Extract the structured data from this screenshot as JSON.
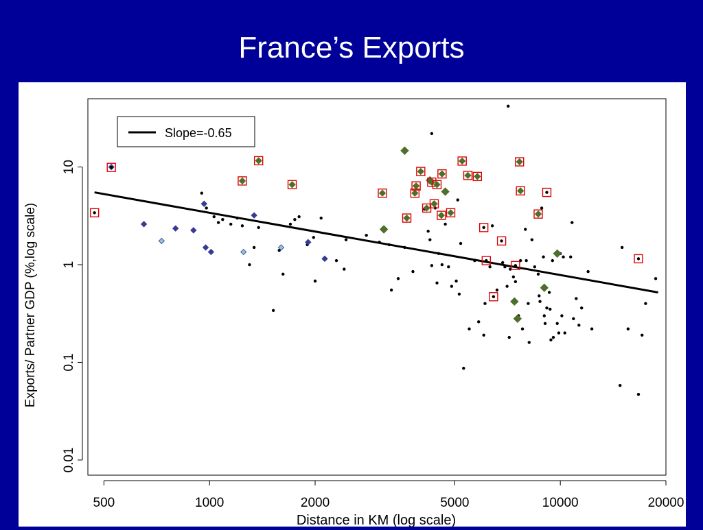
{
  "slide": {
    "title": "France’s Exports"
  },
  "chart_data": {
    "type": "scatter",
    "title": "",
    "xlabel": "Distance in KM (log scale)",
    "ylabel": "Exports/ Partner GDP (%,log scale)",
    "x_scale": "log",
    "y_scale": "log",
    "xlim": [
      450,
      20000
    ],
    "ylim": [
      0.007,
      50
    ],
    "xticks": [
      500,
      1000,
      2000,
      5000,
      10000,
      20000
    ],
    "xtick_labels": [
      "500",
      "1000",
      "2000",
      "5000",
      "10000",
      "20000"
    ],
    "yticks": [
      0.01,
      0.1,
      1,
      10
    ],
    "ytick_labels": [
      "0.01",
      "0.1",
      "1",
      "10"
    ],
    "grid": false,
    "legend": {
      "position": "top-left",
      "label": "Slope=-0.65"
    },
    "fit_line": {
      "slope": -0.65,
      "x": [
        470,
        19000
      ],
      "y": [
        5.5,
        0.52
      ]
    },
    "colors": {
      "black": "#000000",
      "dark_blue": "#3a3a96",
      "light_blue": "#9dbfe8",
      "green": "#4f6e2a",
      "red_box": "#e00000"
    },
    "series": [
      {
        "marker": "black-dot",
        "points": [
          [
            950,
            5.4
          ],
          [
            980,
            3.8
          ],
          [
            1030,
            3.1
          ],
          [
            1060,
            2.7
          ],
          [
            1090,
            2.9
          ],
          [
            1150,
            2.6
          ],
          [
            1200,
            3.0
          ],
          [
            1240,
            2.5
          ],
          [
            1300,
            1.0
          ],
          [
            1340,
            1.5
          ],
          [
            1380,
            2.4
          ],
          [
            1520,
            0.34
          ],
          [
            1580,
            1.4
          ],
          [
            1620,
            0.8
          ],
          [
            1700,
            2.6
          ],
          [
            1750,
            2.9
          ],
          [
            1800,
            3.1
          ],
          [
            1900,
            1.6
          ],
          [
            1980,
            1.9
          ],
          [
            2000,
            0.68
          ],
          [
            2080,
            3.0
          ],
          [
            2300,
            1.1
          ],
          [
            2420,
            0.9
          ],
          [
            2450,
            1.8
          ],
          [
            2800,
            2.0
          ],
          [
            3050,
            1.7
          ],
          [
            3250,
            1.6
          ],
          [
            3300,
            0.55
          ],
          [
            3450,
            0.72
          ],
          [
            3600,
            1.5
          ],
          [
            3800,
            0.85
          ],
          [
            4100,
            3.7
          ],
          [
            4200,
            2.2
          ],
          [
            4250,
            1.8
          ],
          [
            4300,
            0.98
          ],
          [
            4300,
            22
          ],
          [
            4400,
            3.8
          ],
          [
            4450,
            0.65
          ],
          [
            4500,
            1.3
          ],
          [
            4600,
            1.0
          ],
          [
            4700,
            2.6
          ],
          [
            4800,
            0.95
          ],
          [
            4900,
            0.6
          ],
          [
            5050,
            0.68
          ],
          [
            5100,
            4.6
          ],
          [
            5150,
            0.5
          ],
          [
            5200,
            1.65
          ],
          [
            5300,
            0.087
          ],
          [
            5500,
            0.22
          ],
          [
            5700,
            1.1
          ],
          [
            5850,
            0.26
          ],
          [
            6050,
            0.19
          ],
          [
            6100,
            0.4
          ],
          [
            6300,
            0.95
          ],
          [
            6400,
            2.5
          ],
          [
            6600,
            0.55
          ],
          [
            6850,
            1.05
          ],
          [
            6950,
            0.95
          ],
          [
            7050,
            0.6
          ],
          [
            7100,
            42
          ],
          [
            7150,
            0.18
          ],
          [
            7200,
            0.9
          ],
          [
            7350,
            0.75
          ],
          [
            7450,
            0.67
          ],
          [
            7600,
            0.3
          ],
          [
            7700,
            1.1
          ],
          [
            7800,
            0.22
          ],
          [
            7950,
            2.3
          ],
          [
            8000,
            1.1
          ],
          [
            8100,
            0.4
          ],
          [
            8150,
            0.16
          ],
          [
            8300,
            1.8
          ],
          [
            8450,
            0.95
          ],
          [
            8650,
            0.8
          ],
          [
            8700,
            0.48
          ],
          [
            8750,
            0.42
          ],
          [
            8850,
            3.8
          ],
          [
            8950,
            1.2
          ],
          [
            9000,
            0.3
          ],
          [
            9050,
            0.25
          ],
          [
            9150,
            0.36
          ],
          [
            9300,
            0.52
          ],
          [
            9350,
            0.35
          ],
          [
            9400,
            0.17
          ],
          [
            9500,
            1.1
          ],
          [
            9550,
            0.18
          ],
          [
            9800,
            0.25
          ],
          [
            9900,
            0.2
          ],
          [
            10000,
            1.3
          ],
          [
            10100,
            0.3
          ],
          [
            10200,
            1.2
          ],
          [
            10300,
            0.2
          ],
          [
            10700,
            1.2
          ],
          [
            10800,
            2.7
          ],
          [
            10900,
            0.28
          ],
          [
            11100,
            0.45
          ],
          [
            11300,
            0.24
          ],
          [
            11500,
            0.36
          ],
          [
            12000,
            0.85
          ],
          [
            12300,
            0.22
          ],
          [
            14800,
            0.058
          ],
          [
            15000,
            1.5
          ],
          [
            15600,
            0.22
          ],
          [
            16700,
            0.047
          ],
          [
            17100,
            0.19
          ],
          [
            17500,
            0.4
          ],
          [
            18700,
            0.72
          ]
        ]
      },
      {
        "marker": "dark-blue-diamond",
        "points": [
          [
            525,
            10
          ],
          [
            650,
            2.6
          ],
          [
            800,
            2.35
          ],
          [
            900,
            2.25
          ],
          [
            965,
            4.2
          ],
          [
            975,
            1.5
          ],
          [
            1010,
            1.35
          ],
          [
            1340,
            3.2
          ],
          [
            1910,
            1.7
          ],
          [
            2130,
            1.15
          ]
        ]
      },
      {
        "marker": "light-blue-diamond",
        "points": [
          [
            730,
            1.75
          ],
          [
            1250,
            1.35
          ],
          [
            1600,
            1.5
          ]
        ]
      },
      {
        "marker": "green-diamond",
        "points": [
          [
            3140,
            2.3
          ],
          [
            3600,
            14.7
          ],
          [
            4250,
            7.3
          ],
          [
            4700,
            5.6
          ],
          [
            7400,
            0.42
          ],
          [
            7550,
            0.28
          ],
          [
            9800,
            1.3
          ],
          [
            9000,
            0.58
          ]
        ]
      },
      {
        "marker": "green-diamond-red-box",
        "points": [
          [
            1240,
            7.2
          ],
          [
            1380,
            11.6
          ],
          [
            1720,
            6.6
          ],
          [
            3110,
            5.4
          ],
          [
            3650,
            3.0
          ],
          [
            3850,
            5.4
          ],
          [
            3880,
            6.4
          ],
          [
            4000,
            9.0
          ],
          [
            4160,
            3.8
          ],
          [
            4300,
            7.0
          ],
          [
            4370,
            4.2
          ],
          [
            4450,
            6.6
          ],
          [
            4580,
            3.2
          ],
          [
            4600,
            8.5
          ],
          [
            4870,
            3.4
          ],
          [
            5250,
            11.5
          ],
          [
            5450,
            8.2
          ],
          [
            5800,
            8.0
          ],
          [
            7650,
            11.3
          ],
          [
            7700,
            5.7
          ],
          [
            8650,
            3.3
          ]
        ]
      },
      {
        "marker": "red-box",
        "points": [
          [
            470,
            3.4
          ],
          [
            525,
            9.9
          ],
          [
            6050,
            2.4
          ],
          [
            6150,
            1.1
          ],
          [
            6800,
            1.75
          ],
          [
            7450,
            0.98
          ],
          [
            9150,
            5.5
          ],
          [
            16700,
            1.15
          ],
          [
            6450,
            0.47
          ]
        ]
      }
    ]
  }
}
